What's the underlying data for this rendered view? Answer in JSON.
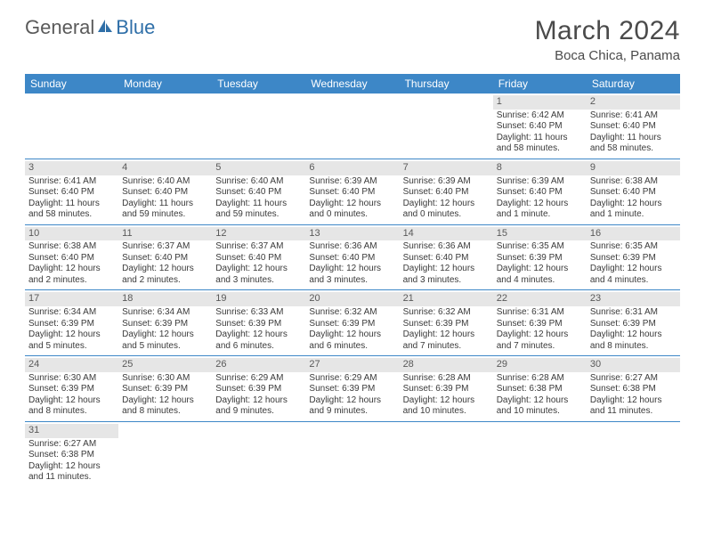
{
  "logo": {
    "text_gray": "General",
    "text_blue": "Blue"
  },
  "title": "March 2024",
  "location": "Boca Chica, Panama",
  "header_color": "#3d87c7",
  "daynum_bg": "#e6e6e6",
  "weekdays": [
    "Sunday",
    "Monday",
    "Tuesday",
    "Wednesday",
    "Thursday",
    "Friday",
    "Saturday"
  ],
  "weeks": [
    [
      null,
      null,
      null,
      null,
      null,
      {
        "n": "1",
        "sr": "6:42 AM",
        "ss": "6:40 PM",
        "dl": "11 hours and 58 minutes."
      },
      {
        "n": "2",
        "sr": "6:41 AM",
        "ss": "6:40 PM",
        "dl": "11 hours and 58 minutes."
      }
    ],
    [
      {
        "n": "3",
        "sr": "6:41 AM",
        "ss": "6:40 PM",
        "dl": "11 hours and 58 minutes."
      },
      {
        "n": "4",
        "sr": "6:40 AM",
        "ss": "6:40 PM",
        "dl": "11 hours and 59 minutes."
      },
      {
        "n": "5",
        "sr": "6:40 AM",
        "ss": "6:40 PM",
        "dl": "11 hours and 59 minutes."
      },
      {
        "n": "6",
        "sr": "6:39 AM",
        "ss": "6:40 PM",
        "dl": "12 hours and 0 minutes."
      },
      {
        "n": "7",
        "sr": "6:39 AM",
        "ss": "6:40 PM",
        "dl": "12 hours and 0 minutes."
      },
      {
        "n": "8",
        "sr": "6:39 AM",
        "ss": "6:40 PM",
        "dl": "12 hours and 1 minute."
      },
      {
        "n": "9",
        "sr": "6:38 AM",
        "ss": "6:40 PM",
        "dl": "12 hours and 1 minute."
      }
    ],
    [
      {
        "n": "10",
        "sr": "6:38 AM",
        "ss": "6:40 PM",
        "dl": "12 hours and 2 minutes."
      },
      {
        "n": "11",
        "sr": "6:37 AM",
        "ss": "6:40 PM",
        "dl": "12 hours and 2 minutes."
      },
      {
        "n": "12",
        "sr": "6:37 AM",
        "ss": "6:40 PM",
        "dl": "12 hours and 3 minutes."
      },
      {
        "n": "13",
        "sr": "6:36 AM",
        "ss": "6:40 PM",
        "dl": "12 hours and 3 minutes."
      },
      {
        "n": "14",
        "sr": "6:36 AM",
        "ss": "6:40 PM",
        "dl": "12 hours and 3 minutes."
      },
      {
        "n": "15",
        "sr": "6:35 AM",
        "ss": "6:39 PM",
        "dl": "12 hours and 4 minutes."
      },
      {
        "n": "16",
        "sr": "6:35 AM",
        "ss": "6:39 PM",
        "dl": "12 hours and 4 minutes."
      }
    ],
    [
      {
        "n": "17",
        "sr": "6:34 AM",
        "ss": "6:39 PM",
        "dl": "12 hours and 5 minutes."
      },
      {
        "n": "18",
        "sr": "6:34 AM",
        "ss": "6:39 PM",
        "dl": "12 hours and 5 minutes."
      },
      {
        "n": "19",
        "sr": "6:33 AM",
        "ss": "6:39 PM",
        "dl": "12 hours and 6 minutes."
      },
      {
        "n": "20",
        "sr": "6:32 AM",
        "ss": "6:39 PM",
        "dl": "12 hours and 6 minutes."
      },
      {
        "n": "21",
        "sr": "6:32 AM",
        "ss": "6:39 PM",
        "dl": "12 hours and 7 minutes."
      },
      {
        "n": "22",
        "sr": "6:31 AM",
        "ss": "6:39 PM",
        "dl": "12 hours and 7 minutes."
      },
      {
        "n": "23",
        "sr": "6:31 AM",
        "ss": "6:39 PM",
        "dl": "12 hours and 8 minutes."
      }
    ],
    [
      {
        "n": "24",
        "sr": "6:30 AM",
        "ss": "6:39 PM",
        "dl": "12 hours and 8 minutes."
      },
      {
        "n": "25",
        "sr": "6:30 AM",
        "ss": "6:39 PM",
        "dl": "12 hours and 8 minutes."
      },
      {
        "n": "26",
        "sr": "6:29 AM",
        "ss": "6:39 PM",
        "dl": "12 hours and 9 minutes."
      },
      {
        "n": "27",
        "sr": "6:29 AM",
        "ss": "6:39 PM",
        "dl": "12 hours and 9 minutes."
      },
      {
        "n": "28",
        "sr": "6:28 AM",
        "ss": "6:39 PM",
        "dl": "12 hours and 10 minutes."
      },
      {
        "n": "29",
        "sr": "6:28 AM",
        "ss": "6:38 PM",
        "dl": "12 hours and 10 minutes."
      },
      {
        "n": "30",
        "sr": "6:27 AM",
        "ss": "6:38 PM",
        "dl": "12 hours and 11 minutes."
      }
    ],
    [
      {
        "n": "31",
        "sr": "6:27 AM",
        "ss": "6:38 PM",
        "dl": "12 hours and 11 minutes."
      },
      null,
      null,
      null,
      null,
      null,
      null
    ]
  ],
  "labels": {
    "sunrise": "Sunrise:",
    "sunset": "Sunset:",
    "daylight": "Daylight:"
  }
}
